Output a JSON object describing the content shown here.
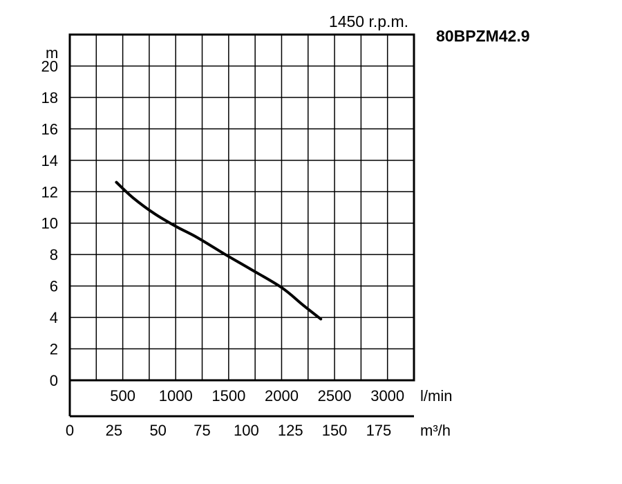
{
  "chart_data": {
    "type": "line",
    "title": "80BPZM42.9",
    "subtitle": "1450 r.p.m.",
    "ylabel": "m",
    "xlabel": "l/min",
    "x2label": "m³/h",
    "xlim": [
      0,
      3250
    ],
    "ylim": [
      0,
      22
    ],
    "yticks": [
      "0",
      "2",
      "4",
      "6",
      "8",
      "10",
      "12",
      "14",
      "16",
      "18",
      "20"
    ],
    "xticks": [
      "500",
      "1000",
      "1500",
      "2000",
      "2500",
      "3000"
    ],
    "x2ticks": [
      "0",
      "25",
      "50",
      "75",
      "100",
      "125",
      "150",
      "175"
    ],
    "grid": true,
    "series": [
      {
        "x": [
          440,
          600,
          800,
          1000,
          1200,
          1470,
          1700,
          2000,
          2200,
          2370
        ],
        "y": [
          12.6,
          11.6,
          10.6,
          9.8,
          9.1,
          8.0,
          7.1,
          5.9,
          4.8,
          3.9
        ]
      }
    ]
  }
}
